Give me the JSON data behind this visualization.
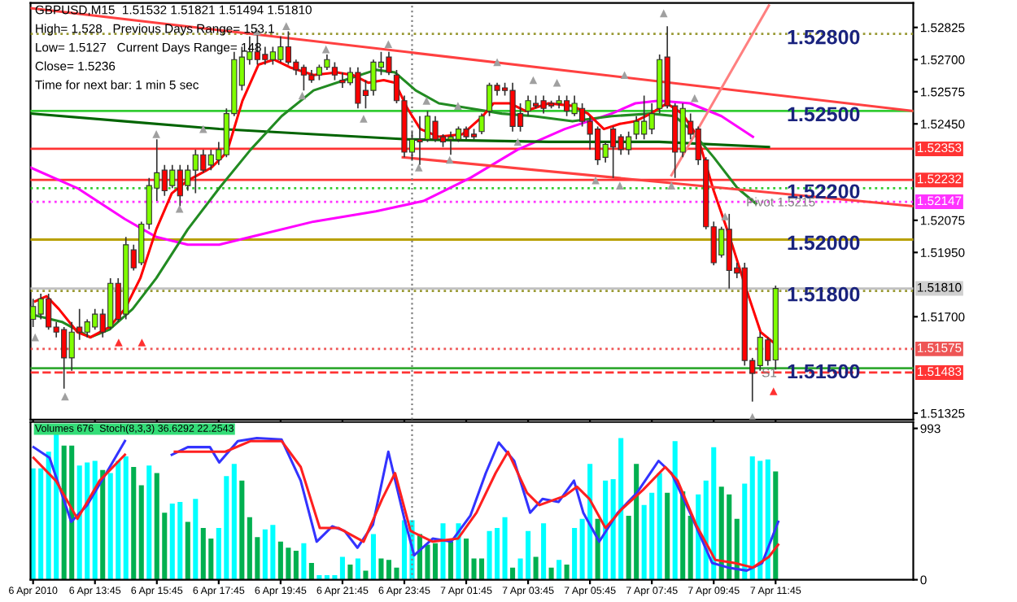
{
  "chart_data": [
    {
      "type": "candlestick",
      "title": "GBPUSD,M15  1.51532 1.51821 1.51494 1.51810",
      "annotations": [
        "High= 1.528   Previous Days Range= 153.1",
        "Low= 1.5127   Current Days Range= 148",
        "Close= 1.5236",
        "Time for next bar: 1 min 5 sec",
        {
          "text": "1.52800",
          "x": "2010-04-07T13:18",
          "y": 1.528
        },
        {
          "text": "1.52500",
          "x": "2010-04-07T13:18",
          "y": 1.525
        },
        {
          "text": "1.52200",
          "x": "2010-04-07T13:18",
          "y": 1.522
        },
        {
          "text": "1.52000",
          "x": "2010-04-07T13:18",
          "y": 1.52
        },
        {
          "text": "1.51800",
          "x": "2010-04-07T13:18",
          "y": 1.518
        },
        {
          "text": "1.51500",
          "x": "2010-04-07T13:18",
          "y": 1.515
        },
        {
          "text": "Pivot 1.5215",
          "x": "2010-04-07T10:48",
          "y": 1.52147
        },
        {
          "text": "S1",
          "x": "2010-04-07T11:18",
          "y": 1.51483
        }
      ],
      "x": [
        "2010-04-06T11:45",
        "2010-04-06T12:00",
        "2010-04-06T12:15",
        "2010-04-06T12:30",
        "2010-04-06T12:45",
        "2010-04-06T13:00",
        "2010-04-06T13:15",
        "2010-04-06T13:30",
        "2010-04-06T13:45",
        "2010-04-06T14:00",
        "2010-04-06T14:15",
        "2010-04-06T14:30",
        "2010-04-06T14:45",
        "2010-04-06T15:00",
        "2010-04-06T15:15",
        "2010-04-06T15:30",
        "2010-04-06T15:45",
        "2010-04-06T16:00",
        "2010-04-06T16:15",
        "2010-04-06T16:30",
        "2010-04-06T16:45",
        "2010-04-06T17:00",
        "2010-04-06T17:15",
        "2010-04-06T17:30",
        "2010-04-06T17:45",
        "2010-04-06T18:00",
        "2010-04-06T18:15",
        "2010-04-06T18:30",
        "2010-04-06T18:45",
        "2010-04-06T19:00",
        "2010-04-06T19:15",
        "2010-04-06T19:30",
        "2010-04-06T19:45",
        "2010-04-06T20:00",
        "2010-04-06T20:15",
        "2010-04-06T20:30",
        "2010-04-06T20:45",
        "2010-04-06T21:00",
        "2010-04-06T21:15",
        "2010-04-06T21:30",
        "2010-04-06T21:45",
        "2010-04-06T22:00",
        "2010-04-06T22:15",
        "2010-04-06T22:30",
        "2010-04-06T22:45",
        "2010-04-06T23:00",
        "2010-04-06T23:15",
        "2010-04-06T23:30",
        "2010-04-06T23:45",
        "2010-04-07T00:00",
        "2010-04-07T00:15",
        "2010-04-07T00:30",
        "2010-04-07T00:45",
        "2010-04-07T01:00",
        "2010-04-07T01:15",
        "2010-04-07T01:30",
        "2010-04-07T01:45",
        "2010-04-07T02:00",
        "2010-04-07T02:15",
        "2010-04-07T02:30",
        "2010-04-07T02:45",
        "2010-04-07T03:00",
        "2010-04-07T03:15",
        "2010-04-07T03:30",
        "2010-04-07T03:45",
        "2010-04-07T04:00",
        "2010-04-07T04:15",
        "2010-04-07T04:30",
        "2010-04-07T04:45",
        "2010-04-07T05:00",
        "2010-04-07T05:15",
        "2010-04-07T05:30",
        "2010-04-07T05:45",
        "2010-04-07T06:00",
        "2010-04-07T06:15",
        "2010-04-07T06:30",
        "2010-04-07T06:45",
        "2010-04-07T07:00",
        "2010-04-07T07:15",
        "2010-04-07T07:30",
        "2010-04-07T07:45",
        "2010-04-07T08:00",
        "2010-04-07T08:15",
        "2010-04-07T08:30",
        "2010-04-07T08:45",
        "2010-04-07T09:00",
        "2010-04-07T09:15",
        "2010-04-07T09:30",
        "2010-04-07T09:45",
        "2010-04-07T10:00",
        "2010-04-07T10:15",
        "2010-04-07T10:30",
        "2010-04-07T10:45",
        "2010-04-07T11:00",
        "2010-04-07T11:15",
        "2010-04-07T11:30",
        "2010-04-07T11:45"
      ],
      "ohlc": [
        [
          1.5169,
          1.5177,
          1.5166,
          1.5174
        ],
        [
          1.5171,
          1.5179,
          1.5169,
          1.5177
        ],
        [
          1.5177,
          1.5179,
          1.5165,
          1.5166
        ],
        [
          1.5166,
          1.5168,
          1.5162,
          1.5164
        ],
        [
          1.5165,
          1.5166,
          1.5142,
          1.5154
        ],
        [
          1.5154,
          1.5168,
          1.5149,
          1.5164
        ],
        [
          1.5166,
          1.5173,
          1.5161,
          1.5164
        ],
        [
          1.5164,
          1.5169,
          1.5162,
          1.5168
        ],
        [
          1.5166,
          1.5173,
          1.5165,
          1.5171
        ],
        [
          1.5171,
          1.5173,
          1.5162,
          1.5164
        ],
        [
          1.5166,
          1.5185,
          1.5165,
          1.5183
        ],
        [
          1.5183,
          1.5185,
          1.5168,
          1.5169
        ],
        [
          1.5171,
          1.5201,
          1.5169,
          1.5198
        ],
        [
          1.5196,
          1.5198,
          1.5188,
          1.5189
        ],
        [
          1.5191,
          1.5207,
          1.519,
          1.5206
        ],
        [
          1.5206,
          1.5224,
          1.5204,
          1.5221
        ],
        [
          1.522,
          1.5239,
          1.5215,
          1.5226
        ],
        [
          1.5227,
          1.5229,
          1.5217,
          1.5219
        ],
        [
          1.5221,
          1.5229,
          1.522,
          1.5227
        ],
        [
          1.5227,
          1.5229,
          1.5213,
          1.5217
        ],
        [
          1.5221,
          1.5229,
          1.5219,
          1.5227
        ],
        [
          1.5227,
          1.5235,
          1.5218,
          1.5233
        ],
        [
          1.5233,
          1.5235,
          1.5226,
          1.5227
        ],
        [
          1.5229,
          1.5235,
          1.5227,
          1.5233
        ],
        [
          1.5231,
          1.5238,
          1.5229,
          1.5235
        ],
        [
          1.5233,
          1.5251,
          1.5232,
          1.5249
        ],
        [
          1.5249,
          1.5273,
          1.5248,
          1.527
        ],
        [
          1.526,
          1.5275,
          1.5258,
          1.5271
        ],
        [
          1.527,
          1.5279,
          1.5268,
          1.5273
        ],
        [
          1.5273,
          1.5281,
          1.5268,
          1.527
        ],
        [
          1.5272,
          1.5275,
          1.5268,
          1.527
        ],
        [
          1.527,
          1.5275,
          1.5268,
          1.5273
        ],
        [
          1.527,
          1.5279,
          1.5269,
          1.5275
        ],
        [
          1.5275,
          1.5281,
          1.5268,
          1.5269
        ],
        [
          1.5269,
          1.527,
          1.5264,
          1.5266
        ],
        [
          1.5267,
          1.5268,
          1.5258,
          1.5264
        ],
        [
          1.5264,
          1.5266,
          1.5261,
          1.5262
        ],
        [
          1.5264,
          1.5268,
          1.5262,
          1.5267
        ],
        [
          1.5267,
          1.5272,
          1.5266,
          1.527
        ],
        [
          1.5267,
          1.5269,
          1.5262,
          1.5264
        ],
        [
          1.5262,
          1.5265,
          1.5259,
          1.5261
        ],
        [
          1.5261,
          1.5267,
          1.526,
          1.5265
        ],
        [
          1.5265,
          1.5267,
          1.5251,
          1.5253
        ],
        [
          1.5258,
          1.5262,
          1.5251,
          1.5256
        ],
        [
          1.5258,
          1.527,
          1.5256,
          1.5269
        ],
        [
          1.5267,
          1.5273,
          1.5264,
          1.5269
        ],
        [
          1.5271,
          1.5273,
          1.5264,
          1.5265
        ],
        [
          1.5264,
          1.5266,
          1.5253,
          1.5254
        ],
        [
          1.5254,
          1.5256,
          1.5232,
          1.5234
        ],
        [
          1.5234,
          1.5242,
          1.5231,
          1.5239
        ],
        [
          1.5239,
          1.5248,
          1.5229,
          1.5238
        ],
        [
          1.5239,
          1.525,
          1.5238,
          1.5248
        ],
        [
          1.5246,
          1.5248,
          1.5238,
          1.5239
        ],
        [
          1.524,
          1.5241,
          1.5236,
          1.5238
        ],
        [
          1.5239,
          1.5242,
          1.5233,
          1.524
        ],
        [
          1.5239,
          1.5244,
          1.5238,
          1.5243
        ],
        [
          1.5243,
          1.5244,
          1.5239,
          1.524
        ],
        [
          1.5241,
          1.5243,
          1.5239,
          1.524
        ],
        [
          1.5242,
          1.5249,
          1.5241,
          1.5248
        ],
        [
          1.525,
          1.5261,
          1.5248,
          1.526
        ],
        [
          1.526,
          1.5261,
          1.5256,
          1.5258
        ],
        [
          1.5259,
          1.5261,
          1.5256,
          1.5258
        ],
        [
          1.5258,
          1.5261,
          1.5242,
          1.5244
        ],
        [
          1.5249,
          1.5253,
          1.5242,
          1.5244
        ],
        [
          1.525,
          1.5256,
          1.5248,
          1.5254
        ],
        [
          1.5253,
          1.5256,
          1.5251,
          1.5252
        ],
        [
          1.5254,
          1.5256,
          1.5249,
          1.5251
        ],
        [
          1.5253,
          1.5254,
          1.5251,
          1.5252
        ],
        [
          1.5253,
          1.5256,
          1.5251,
          1.5254
        ],
        [
          1.5254,
          1.5256,
          1.5248,
          1.525
        ],
        [
          1.5249,
          1.5256,
          1.5248,
          1.5253
        ],
        [
          1.5251,
          1.5253,
          1.5244,
          1.5246
        ],
        [
          1.5246,
          1.5248,
          1.5235,
          1.5241
        ],
        [
          1.5243,
          1.5244,
          1.5229,
          1.5231
        ],
        [
          1.5232,
          1.5238,
          1.523,
          1.5237
        ],
        [
          1.5243,
          1.5244,
          1.5224,
          1.5236
        ],
        [
          1.524,
          1.5241,
          1.5233,
          1.5235
        ],
        [
          1.5235,
          1.5242,
          1.5233,
          1.524
        ],
        [
          1.5241,
          1.5248,
          1.5239,
          1.5246
        ],
        [
          1.5241,
          1.5256,
          1.5239,
          1.5246
        ],
        [
          1.5243,
          1.5253,
          1.5241,
          1.5249
        ],
        [
          1.5251,
          1.5272,
          1.5249,
          1.527
        ],
        [
          1.5271,
          1.5283,
          1.5251,
          1.5252
        ],
        [
          1.5252,
          1.5253,
          1.5224,
          1.5234
        ],
        [
          1.5234,
          1.5253,
          1.5232,
          1.5251
        ],
        [
          1.5246,
          1.5249,
          1.5239,
          1.5241
        ],
        [
          1.5243,
          1.5244,
          1.5229,
          1.5231
        ],
        [
          1.5231,
          1.5232,
          1.5204,
          1.5205
        ],
        [
          1.5205,
          1.5207,
          1.519,
          1.5191
        ],
        [
          1.5194,
          1.5205,
          1.5193,
          1.5204
        ],
        [
          1.5204,
          1.521,
          1.5181,
          1.5188
        ],
        [
          1.5189,
          1.5191,
          1.5185,
          1.5187
        ],
        [
          1.5189,
          1.5191,
          1.5151,
          1.5153
        ],
        [
          1.5153,
          1.5154,
          1.5137,
          1.5148
        ],
        [
          1.5151,
          1.5164,
          1.5149,
          1.5162
        ],
        [
          1.5161,
          1.5162,
          1.5151,
          1.5153
        ],
        [
          1.51532,
          1.51821,
          1.51494,
          1.5181
        ]
      ],
      "colors": [
        "#80ff00",
        "#80ff00",
        "#ff0000",
        "#ff0000",
        "#ff0000",
        "#80ff00",
        "#ff0000",
        "#80ff00",
        "#80ff00",
        "#ff0000",
        "#80ff00",
        "#ff0000",
        "#80ff00",
        "#ff0000",
        "#80ff00",
        "#80ff00",
        "#80ff00",
        "#ff0000",
        "#80ff00",
        "#ff0000",
        "#80ff00",
        "#80ff00",
        "#ff0000",
        "#80ff00",
        "#80ff00",
        "#80ff00",
        "#80ff00",
        "#80ff00",
        "#80ff00",
        "#ff0000",
        "#ff0000",
        "#80ff00",
        "#80ff00",
        "#ff0000",
        "#ff0000",
        "#ff0000",
        "#ff0000",
        "#80ff00",
        "#80ff00",
        "#ff0000",
        "#ff0000",
        "#80ff00",
        "#ff0000",
        "#ff0000",
        "#80ff00",
        "#80ff00",
        "#ff0000",
        "#ff0000",
        "#ff0000",
        "#80ff00",
        "#ff0000",
        "#80ff00",
        "#ff0000",
        "#ff0000",
        "#80ff00",
        "#80ff00",
        "#ff0000",
        "#ff0000",
        "#80ff00",
        "#80ff00",
        "#ff0000",
        "#ff0000",
        "#ff0000",
        "#ff0000",
        "#80ff00",
        "#ff0000",
        "#ff0000",
        "#ff0000",
        "#80ff00",
        "#ff0000",
        "#80ff00",
        "#ff0000",
        "#ff0000",
        "#ff0000",
        "#80ff00",
        "#ff0000",
        "#ff0000",
        "#80ff00",
        "#80ff00",
        "#80ff00",
        "#80ff00",
        "#80ff00",
        "#ff0000",
        "#ff0000",
        "#80ff00",
        "#ff0000",
        "#ff0000",
        "#ff0000",
        "#ff0000",
        "#80ff00",
        "#ff0000",
        "#ff0000",
        "#ff0000",
        "#ff0000",
        "#80ff00",
        "#ff0000",
        "#80ff00"
      ],
      "series": [
        {
          "type": "line",
          "color": "#ff00ff",
          "x": [
            "2010-04-06T11:40",
            "2010-04-06T13:11",
            "2010-04-06T14:43",
            "2010-04-06T15:44",
            "2010-04-06T16:45",
            "2010-04-06T17:46",
            "2010-04-06T18:47",
            "2010-04-06T20:49",
            "2010-04-06T22:50",
            "2010-04-07T00:22",
            "2010-04-07T01:53",
            "2010-04-07T03:25",
            "2010-04-07T04:56",
            "2010-04-07T06:27",
            "2010-04-07T07:13",
            "2010-04-07T07:59",
            "2010-04-07T08:59",
            "2010-04-07T10:00",
            "2010-04-07T11:01"
          ],
          "values": [
            1.5228,
            1.522,
            1.5208,
            1.5201,
            1.5198,
            1.5198,
            1.5201,
            1.5207,
            1.5211,
            1.5215,
            1.5224,
            1.5235,
            1.5243,
            1.5249,
            1.5253,
            1.5254,
            1.5253,
            1.5248,
            1.524
          ]
        },
        {
          "type": "line",
          "color": "#006400",
          "x": [
            "2010-04-06T11:40",
            "2010-04-06T14:43",
            "2010-04-06T17:46",
            "2010-04-06T20:49",
            "2010-04-06T23:51",
            "2010-04-07T04:25",
            "2010-04-07T07:59",
            "2010-04-07T11:32"
          ],
          "values": [
            1.5249,
            1.5246,
            1.5243,
            1.5241,
            1.5239,
            1.5238,
            1.5238,
            1.5236
          ]
        },
        {
          "type": "line",
          "color": "#228b22",
          "x": [
            "2010-04-06T11:40",
            "2010-04-06T12:41",
            "2010-04-06T13:36",
            "2010-04-06T14:13",
            "2010-04-06T14:58",
            "2010-04-06T15:44",
            "2010-04-06T16:45",
            "2010-04-06T17:46",
            "2010-04-06T18:47",
            "2010-04-06T19:47",
            "2010-04-06T20:49",
            "2010-04-06T21:49",
            "2010-04-06T22:50",
            "2010-04-06T23:27",
            "2010-04-07T00:07",
            "2010-04-07T00:52",
            "2010-04-07T01:53",
            "2010-04-07T02:54",
            "2010-04-07T03:55",
            "2010-04-07T05:11",
            "2010-04-07T06:27",
            "2010-04-07T07:43",
            "2010-04-07T08:29",
            "2010-04-07T08:59",
            "2010-04-07T09:45",
            "2010-04-07T10:31",
            "2010-04-07T11:07"
          ],
          "values": [
            1.5171,
            1.5168,
            1.5162,
            1.5165,
            1.5173,
            1.5185,
            1.5204,
            1.522,
            1.5235,
            1.5248,
            1.5258,
            1.5262,
            1.5266,
            1.5265,
            1.5258,
            1.5253,
            1.5251,
            1.5249,
            1.5248,
            1.5246,
            1.5248,
            1.5249,
            1.5248,
            1.5243,
            1.5232,
            1.522,
            1.5214
          ]
        },
        {
          "type": "line",
          "color": "#ff0000",
          "x": [
            "2010-04-06T11:49",
            "2010-04-06T12:11",
            "2010-04-06T12:35",
            "2010-04-06T13:11",
            "2010-04-06T13:36",
            "2010-04-06T14:13",
            "2010-04-06T14:43",
            "2010-04-06T15:13",
            "2010-04-06T15:44",
            "2010-04-06T16:14",
            "2010-04-06T16:45",
            "2010-04-06T17:31",
            "2010-04-06T18:01",
            "2010-04-06T18:31",
            "2010-04-06T19:02",
            "2010-04-06T19:32",
            "2010-04-06T20:03",
            "2010-04-06T20:49",
            "2010-04-06T21:34",
            "2010-04-06T22:05",
            "2010-04-06T22:35",
            "2010-04-06T23:05",
            "2010-04-06T23:27",
            "2010-04-06T23:51",
            "2010-04-07T00:16",
            "2010-04-07T00:52",
            "2010-04-07T01:38",
            "2010-04-07T02:17",
            "2010-04-07T02:38",
            "2010-04-07T03:09",
            "2010-04-07T03:40",
            "2010-04-07T04:25",
            "2010-04-07T05:11",
            "2010-04-07T05:41",
            "2010-04-07T06:12",
            "2010-04-07T06:43",
            "2010-04-07T07:13",
            "2010-04-07T07:43",
            "2010-04-07T08:14",
            "2010-04-07T08:44",
            "2010-04-07T09:14",
            "2010-04-07T09:45",
            "2010-04-07T10:16",
            "2010-04-07T10:46",
            "2010-04-07T11:16",
            "2010-04-07T11:47"
          ],
          "values": [
            1.5176,
            1.5178,
            1.5173,
            1.5164,
            1.5162,
            1.5166,
            1.5173,
            1.5185,
            1.5204,
            1.5218,
            1.5223,
            1.5228,
            1.5234,
            1.5254,
            1.5268,
            1.527,
            1.5267,
            1.5264,
            1.5265,
            1.5264,
            1.5261,
            1.5262,
            1.5261,
            1.5251,
            1.5243,
            1.524,
            1.5241,
            1.5248,
            1.5253,
            1.5253,
            1.525,
            1.5253,
            1.5252,
            1.5249,
            1.5243,
            1.5245,
            1.5246,
            1.5249,
            1.5253,
            1.5249,
            1.524,
            1.5219,
            1.5201,
            1.5182,
            1.5164,
            1.5159
          ]
        },
        {
          "type": "line",
          "color": "#ff4040",
          "x": [
            "2010-04-06T11:40",
            "2010-04-07T16:12"
          ],
          "values": [
            1.529,
            1.525
          ]
        },
        {
          "type": "line",
          "color": "#ff4040",
          "x": [
            "2010-04-06T23:42",
            "2010-04-07T16:12"
          ],
          "values": [
            1.5232,
            1.5213
          ]
        },
        {
          "type": "line",
          "color": "#ff8080",
          "x": [
            "2010-04-07T08:23",
            "2010-04-07T11:32"
          ],
          "values": [
            1.5225,
            1.5291
          ]
        },
        {
          "type": "scatter",
          "marker": "triangle",
          "color": "#a0a0a0",
          "x": [
            "2010-04-06T15:44",
            "2010-04-06T17:15",
            "2010-04-06T18:59",
            "2010-04-06T19:56",
            "2010-04-06T21:13",
            "2010-04-06T23:14",
            "2010-04-07T00:28",
            "2010-04-07T01:29",
            "2010-04-07T02:45",
            "2010-04-07T03:55",
            "2010-04-07T04:41",
            "2010-04-07T06:52",
            "2010-04-07T08:08",
            "2010-04-07T09:08",
            "2010-04-07T10:07"
          ],
          "values": [
            1.5241,
            1.5243,
            1.5281,
            1.5283,
            1.5274,
            1.5276,
            1.5254,
            1.5252,
            1.5269,
            1.5262,
            1.5261,
            1.5264,
            1.5288,
            1.5255,
            1.5209
          ]
        },
        {
          "type": "scatter",
          "marker": "triangle",
          "color": "#a0a0a0",
          "x": [
            "2010-04-06T11:49",
            "2010-04-06T12:47",
            "2010-04-06T16:29",
            "2010-04-06T20:27",
            "2010-04-06T22:26",
            "2010-04-07T00:13",
            "2010-04-07T01:13",
            "2010-04-07T03:25",
            "2010-04-07T05:56",
            "2010-04-07T06:43",
            "2010-04-07T08:23",
            "2010-04-07T11:00"
          ],
          "values": [
            1.5162,
            1.5139,
            1.5212,
            1.5256,
            1.5247,
            1.5228,
            1.5231,
            1.5238,
            1.5223,
            1.5221,
            1.5221,
            1.5131
          ]
        },
        {
          "type": "scatter",
          "marker": "triangle",
          "color": "#ff3030",
          "x": [
            "2010-04-06T14:31",
            "2010-04-06T15:16",
            "2010-04-07T11:41"
          ],
          "values": [
            1.516,
            1.516,
            1.5141
          ]
        }
      ],
      "ref_lines": [
        {
          "axis": "y",
          "value": 1.528,
          "color": "#999933",
          "line_style": "dotted"
        },
        {
          "axis": "y",
          "value": 1.525,
          "color": "#33cc33",
          "line_style": "solid"
        },
        {
          "axis": "y",
          "value": 1.52353,
          "label": "1.52353",
          "color": "#ff3333",
          "line_style": "solid"
        },
        {
          "axis": "y",
          "value": 1.52232,
          "label": "1.52232",
          "color": "#ff3333",
          "line_style": "solid"
        },
        {
          "axis": "y",
          "value": 1.522,
          "color": "#33cc33",
          "line_style": "dotted"
        },
        {
          "axis": "y",
          "value": 1.52147,
          "label": "1.52147",
          "color": "#ff33ff",
          "line_style": "dotted"
        },
        {
          "axis": "y",
          "value": 1.52,
          "color": "#b8a000",
          "line_style": "solid"
        },
        {
          "axis": "y",
          "value": 1.518,
          "color": "#999933",
          "line_style": "dotted"
        },
        {
          "axis": "y",
          "value": 1.5181,
          "label": "1.51810",
          "color": "#c0c0c0",
          "line_style": "solid"
        },
        {
          "axis": "y",
          "value": 1.51575,
          "label": "1.51575",
          "color": "#ee5555",
          "line_style": "dotted"
        },
        {
          "axis": "y",
          "value": 1.51483,
          "label": "1.51483",
          "color": "#ff3333",
          "line_style": "dashed"
        },
        {
          "axis": "y",
          "value": 1.515,
          "color": "#33aa33",
          "line_style": "solid"
        },
        {
          "axis": "x",
          "value": "2010-04-07T00:00",
          "color": "#808080",
          "line_style": "dotted"
        }
      ],
      "xlim": [
        "2010-04-06T11:40",
        "2010-04-07T16:12"
      ],
      "ylim": [
        1.513,
        1.5292
      ],
      "xticks": [
        "2010-04-06T11:45",
        "2010-04-06T13:45",
        "2010-04-06T15:45",
        "2010-04-06T17:45",
        "2010-04-06T19:45",
        "2010-04-06T21:45",
        "2010-04-06T23:45",
        "2010-04-07T01:45",
        "2010-04-07T03:45",
        "2010-04-07T05:45",
        "2010-04-07T07:45",
        "2010-04-07T09:45",
        "2010-04-07T11:45"
      ],
      "yticks": [
        {
          "value": 1.52825,
          "label": "1.52825"
        },
        {
          "value": 1.527,
          "label": "1.52700"
        },
        {
          "value": 1.52575,
          "label": "1.52575"
        },
        {
          "value": 1.5245,
          "label": "1.52450"
        },
        {
          "value": 1.52075,
          "label": "1.52075"
        },
        {
          "value": 1.5195,
          "label": "1.51950"
        },
        {
          "value": 1.517,
          "label": "1.51700"
        },
        {
          "value": 1.51325,
          "label": "1.51325"
        }
      ],
      "tick_labels": "y"
    },
    {
      "type": "bar",
      "title": "Volumes 676  Stoch(8,3,3) 36.6292 22.2543",
      "x": [
        "2010-04-06T11:45",
        "2010-04-06T12:00",
        "2010-04-06T12:15",
        "2010-04-06T12:30",
        "2010-04-06T12:45",
        "2010-04-06T13:00",
        "2010-04-06T13:15",
        "2010-04-06T13:30",
        "2010-04-06T13:45",
        "2010-04-06T14:00",
        "2010-04-06T14:15",
        "2010-04-06T14:30",
        "2010-04-06T14:45",
        "2010-04-06T15:00",
        "2010-04-06T15:15",
        "2010-04-06T15:30",
        "2010-04-06T15:45",
        "2010-04-06T16:00",
        "2010-04-06T16:15",
        "2010-04-06T16:30",
        "2010-04-06T16:45",
        "2010-04-06T17:00",
        "2010-04-06T17:15",
        "2010-04-06T17:30",
        "2010-04-06T17:45",
        "2010-04-06T18:00",
        "2010-04-06T18:15",
        "2010-04-06T18:30",
        "2010-04-06T18:45",
        "2010-04-06T19:00",
        "2010-04-06T19:15",
        "2010-04-06T19:30",
        "2010-04-06T19:45",
        "2010-04-06T20:00",
        "2010-04-06T20:15",
        "2010-04-06T20:30",
        "2010-04-06T20:45",
        "2010-04-06T21:00",
        "2010-04-06T21:15",
        "2010-04-06T21:30",
        "2010-04-06T21:45",
        "2010-04-06T22:00",
        "2010-04-06T22:15",
        "2010-04-06T22:30",
        "2010-04-06T22:45",
        "2010-04-06T23:00",
        "2010-04-06T23:15",
        "2010-04-06T23:30",
        "2010-04-06T23:45",
        "2010-04-07T00:00",
        "2010-04-07T00:15",
        "2010-04-07T00:30",
        "2010-04-07T00:45",
        "2010-04-07T01:00",
        "2010-04-07T01:15",
        "2010-04-07T01:30",
        "2010-04-07T01:45",
        "2010-04-07T02:00",
        "2010-04-07T02:15",
        "2010-04-07T02:30",
        "2010-04-07T02:45",
        "2010-04-07T03:00",
        "2010-04-07T03:15",
        "2010-04-07T03:30",
        "2010-04-07T03:45",
        "2010-04-07T04:00",
        "2010-04-07T04:15",
        "2010-04-07T04:30",
        "2010-04-07T04:45",
        "2010-04-07T05:00",
        "2010-04-07T05:15",
        "2010-04-07T05:30",
        "2010-04-07T05:45",
        "2010-04-07T06:00",
        "2010-04-07T06:15",
        "2010-04-07T06:30",
        "2010-04-07T06:45",
        "2010-04-07T07:00",
        "2010-04-07T07:15",
        "2010-04-07T07:30",
        "2010-04-07T07:45",
        "2010-04-07T08:00",
        "2010-04-07T08:15",
        "2010-04-07T08:30",
        "2010-04-07T08:45",
        "2010-04-07T09:00",
        "2010-04-07T09:15",
        "2010-04-07T09:30",
        "2010-04-07T09:45",
        "2010-04-07T10:00",
        "2010-04-07T10:15",
        "2010-04-07T10:30",
        "2010-04-07T10:45",
        "2010-04-07T11:00",
        "2010-04-07T11:15",
        "2010-04-07T11:30",
        "2010-04-07T11:45"
      ],
      "values": [
        730,
        730,
        840,
        970,
        880,
        880,
        750,
        770,
        780,
        720,
        700,
        780,
        810,
        740,
        620,
        750,
        700,
        440,
        500,
        510,
        380,
        530,
        340,
        270,
        340,
        680,
        760,
        650,
        410,
        280,
        330,
        360,
        250,
        210,
        190,
        240,
        110,
        30,
        30,
        30,
        150,
        100,
        140,
        60,
        300,
        140,
        130,
        80,
        390,
        390,
        300,
        230,
        240,
        370,
        250,
        370,
        270,
        140,
        140,
        320,
        340,
        410,
        80,
        140,
        320,
        150,
        370,
        80,
        130,
        100,
        340,
        400,
        760,
        400,
        650,
        660,
        930,
        420,
        760,
        490,
        570,
        700,
        570,
        910,
        580,
        420,
        560,
        650,
        870,
        610,
        560,
        400,
        630,
        810,
        780,
        790,
        710
      ],
      "colors": [
        "#00ffff",
        "#00ffff",
        "#00ffff",
        "#00ffff",
        "#00b050",
        "#00b050",
        "#00ffff",
        "#00ffff",
        "#00ffff",
        "#00b050",
        "#00ffff",
        "#00ffff",
        "#00ffff",
        "#00b050",
        "#00b050",
        "#00ffff",
        "#00b050",
        "#00b050",
        "#00ffff",
        "#00ffff",
        "#00b050",
        "#00ffff",
        "#00b050",
        "#00b050",
        "#00ffff",
        "#00ffff",
        "#00ffff",
        "#00b050",
        "#00b050",
        "#00b050",
        "#00ffff",
        "#00ffff",
        "#00b050",
        "#00b050",
        "#00b050",
        "#00ffff",
        "#00b050",
        "#00ffff",
        "#00ffff",
        "#00ffff",
        "#00ffff",
        "#00b050",
        "#00ffff",
        "#00b050",
        "#00ffff",
        "#00b050",
        "#00b050",
        "#00b050",
        "#00ffff",
        "#00ffff",
        "#00b050",
        "#00b050",
        "#00b050",
        "#00ffff",
        "#00b050",
        "#00ffff",
        "#00b050",
        "#00b050",
        "#00b050",
        "#00ffff",
        "#00ffff",
        "#00ffff",
        "#00b050",
        "#00ffff",
        "#00ffff",
        "#00b050",
        "#00ffff",
        "#00b050",
        "#00ffff",
        "#00b050",
        "#00ffff",
        "#00ffff",
        "#00ffff",
        "#00b050",
        "#00ffff",
        "#00ffff",
        "#00ffff",
        "#00b050",
        "#00b050",
        "#00ffff",
        "#00ffff",
        "#00ffff",
        "#00b050",
        "#00ffff",
        "#00b050",
        "#00b050",
        "#00ffff",
        "#00ffff",
        "#00ffff",
        "#00b050",
        "#00b050",
        "#00b050",
        "#00ffff",
        "#00ffff",
        "#00ffff",
        "#00ffff",
        "#00b050"
      ],
      "series": [
        {
          "type": "line",
          "color": "#3333ff",
          "x": [
            "2010-04-06T11:46",
            "2010-04-06T12:17",
            "2010-04-06T12:59",
            "2010-04-06T13:30",
            "2010-04-06T14:07",
            "2010-04-06T14:43",
            "2010-04-06T15:13",
            "2010-04-06T15:44",
            "2010-04-06T16:14",
            "2010-04-06T16:45",
            "2010-04-06T17:28",
            "2010-04-06T17:46",
            "2010-04-06T18:22",
            "2010-04-06T18:59",
            "2010-04-06T19:47",
            "2010-04-06T20:24",
            "2010-04-06T20:55",
            "2010-04-06T21:25",
            "2010-04-06T21:49",
            "2010-04-06T22:14",
            "2010-04-06T22:44",
            "2010-04-06T23:14",
            "2010-04-06T23:45",
            "2010-04-07T00:04",
            "2010-04-07T00:40",
            "2010-04-07T01:16",
            "2010-04-07T01:53",
            "2010-04-07T02:23",
            "2010-04-07T02:48",
            "2010-04-07T03:18",
            "2010-04-07T03:49",
            "2010-04-07T04:13",
            "2010-04-07T04:44",
            "2010-04-07T05:14",
            "2010-04-07T05:32",
            "2010-04-07T06:03",
            "2010-04-07T06:39",
            "2010-04-07T07:16",
            "2010-04-07T07:58",
            "2010-04-07T08:23",
            "2010-04-07T08:59",
            "2010-04-07T09:42",
            "2010-04-07T10:13",
            "2010-04-07T10:49",
            "2010-04-07T11:19",
            "2010-04-07T11:50"
          ],
          "values": [
            870,
            800,
            380,
            490,
            700,
            910,
            null,
            null,
            820,
            870,
            870,
            770,
            910,
            930,
            920,
            650,
            250,
            350,
            320,
            210,
            360,
            840,
            400,
            160,
            270,
            250,
            420,
            700,
            900,
            780,
            440,
            530,
            510,
            650,
            440,
            250,
            440,
            570,
            780,
            700,
            440,
            110,
            80,
            60,
            110,
            380
          ]
        },
        {
          "type": "line",
          "color": "#ff2020",
          "x": [
            "2010-04-06T11:46",
            "2010-04-06T12:29",
            "2010-04-06T13:11",
            "2010-04-06T13:54",
            "2010-04-06T14:43",
            "2010-04-06T15:32",
            "2010-04-06T16:20",
            "2010-04-06T17:09",
            "2010-04-06T17:58",
            "2010-04-06T18:47",
            "2010-04-06T19:47",
            "2010-04-06T20:24",
            "2010-04-06T21:01",
            "2010-04-06T21:37",
            "2010-04-06T22:26",
            "2010-04-06T23:02",
            "2010-04-06T23:27",
            "2010-04-06T23:57",
            "2010-04-07T00:40",
            "2010-04-07T01:29",
            "2010-04-07T02:05",
            "2010-04-07T02:42",
            "2010-04-07T03:06",
            "2010-04-07T03:43",
            "2010-04-07T04:07",
            "2010-04-07T04:56",
            "2010-04-07T05:20",
            "2010-04-07T05:44",
            "2010-04-07T06:15",
            "2010-04-07T06:46",
            "2010-04-07T07:28",
            "2010-04-07T08:11",
            "2010-04-07T08:35",
            "2010-04-07T09:11",
            "2010-04-07T09:48",
            "2010-04-07T10:25",
            "2010-04-07T11:01",
            "2010-04-07T11:32",
            "2010-04-07T11:50"
          ],
          "values": [
            800,
            650,
            400,
            650,
            820,
            null,
            840,
            840,
            840,
            910,
            910,
            740,
            340,
            340,
            250,
            530,
            700,
            320,
            250,
            270,
            440,
            700,
            840,
            570,
            490,
            550,
            610,
            530,
            340,
            460,
            590,
            740,
            650,
            360,
            130,
            110,
            80,
            150,
            230
          ]
        }
      ],
      "ref_lines": [
        {
          "axis": "x",
          "value": "2010-04-07T00:00",
          "color": "#808080",
          "line_style": "dotted"
        }
      ],
      "xlim": [
        "2010-04-06T11:40",
        "2010-04-07T16:12"
      ],
      "ylim": [
        0,
        1035
      ],
      "xticks": [
        {
          "value": "2010-04-06T11:45",
          "label": "6 Apr 2010"
        },
        {
          "value": "2010-04-06T13:45",
          "label": "6 Apr 13:45"
        },
        {
          "value": "2010-04-06T15:45",
          "label": "6 Apr 15:45"
        },
        {
          "value": "2010-04-06T17:45",
          "label": "6 Apr 17:45"
        },
        {
          "value": "2010-04-06T19:45",
          "label": "6 Apr 19:45"
        },
        {
          "value": "2010-04-06T21:45",
          "label": "6 Apr 21:45"
        },
        {
          "value": "2010-04-06T23:45",
          "label": "6 Apr 23:45"
        },
        {
          "value": "2010-04-07T01:45",
          "label": "7 Apr 01:45"
        },
        {
          "value": "2010-04-07T03:45",
          "label": "7 Apr 03:45"
        },
        {
          "value": "2010-04-07T05:45",
          "label": "7 Apr 05:45"
        },
        {
          "value": "2010-04-07T07:45",
          "label": "7 Apr 07:45"
        },
        {
          "value": "2010-04-07T09:45",
          "label": "7 Apr 09:45"
        },
        {
          "value": "2010-04-07T11:45",
          "label": "7 Apr 11:45"
        }
      ],
      "yticks": [
        0,
        993
      ]
    }
  ]
}
